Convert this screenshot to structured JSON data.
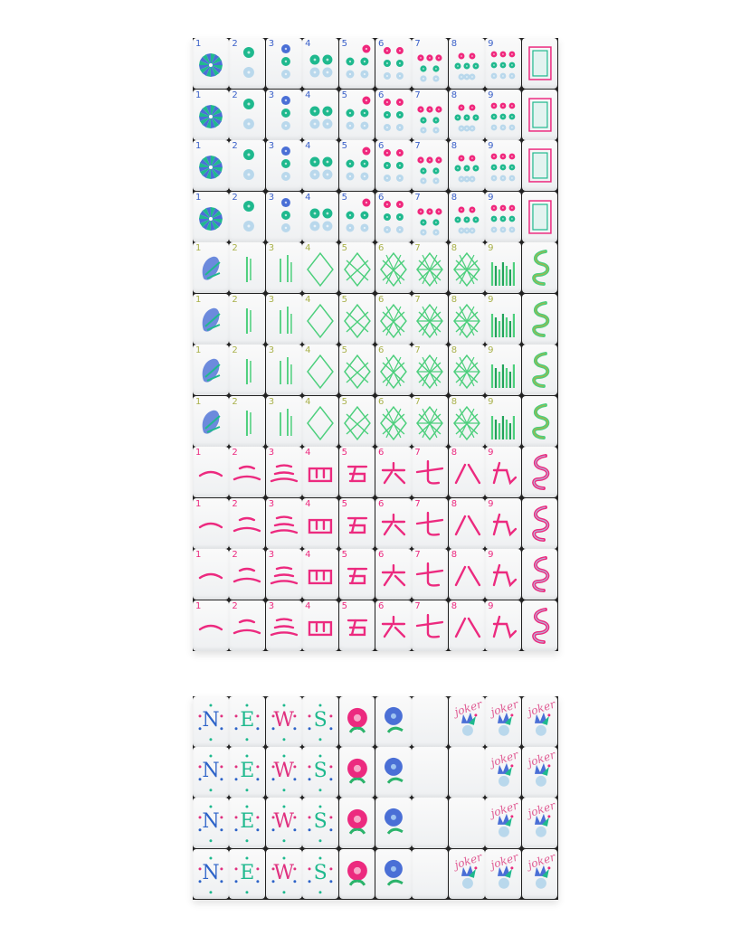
{
  "colors": {
    "dot_teal": "#1fb98e",
    "dot_blue": "#4a6fd6",
    "dot_light": "#b9d8ec",
    "dot_pink": "#f0287d",
    "bamboo": "#4ccf7c",
    "character": "#ec2a7f",
    "number_blue": "#3b61c9",
    "number_olive": "#a9b14b",
    "number_pink": "#ec2a7f",
    "wind_blue": "#2d63c8",
    "wind_teal": "#1fb98e",
    "wind_pink": "#e0307f"
  },
  "top_grid": {
    "rows": [
      {
        "suit": "dots",
        "count": 4
      },
      {
        "suit": "bamboo",
        "count": 4
      },
      {
        "suit": "characters",
        "count": 4
      }
    ],
    "numbers": [
      "1",
      "2",
      "3",
      "4",
      "5",
      "6",
      "7",
      "8",
      "9"
    ],
    "honor_column": {
      "dots": "white-dragon",
      "bamboo": "green-dragon",
      "characters": "red-dragon"
    }
  },
  "bottom_grid": {
    "winds": [
      "N",
      "E",
      "W",
      "S"
    ],
    "flowers": [
      "pink-flower",
      "blue-flower"
    ],
    "joker_label": "joker",
    "rows": [
      [
        "N",
        "E",
        "W",
        "S",
        "pink-flower",
        "blue-flower",
        "blank",
        "joker",
        "joker",
        "joker"
      ],
      [
        "N",
        "E",
        "W",
        "S",
        "pink-flower",
        "blue-flower",
        "blank",
        "blank",
        "joker",
        "joker"
      ],
      [
        "N",
        "E",
        "W",
        "S",
        "pink-flower",
        "blue-flower",
        "blank",
        "blank",
        "joker",
        "joker"
      ],
      [
        "N",
        "E",
        "W",
        "S",
        "pink-flower",
        "blue-flower",
        "blank",
        "joker",
        "joker",
        "joker"
      ]
    ]
  }
}
